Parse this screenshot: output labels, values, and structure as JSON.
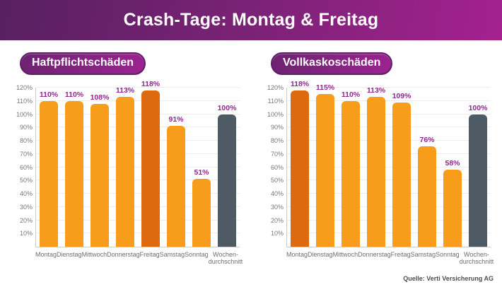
{
  "header": {
    "title": "Crash-Tage: Montag & Freitag"
  },
  "source": {
    "label": "Quelle: Verti Versicherung AG"
  },
  "colors": {
    "header_gradient_start": "#582060",
    "header_gradient_end": "#A4218F",
    "badge_gradient_start": "#6E2371",
    "badge_gradient_end": "#9C2390",
    "badge_border": "#5E1F66",
    "bar_normal": "#F89C1C",
    "bar_highlight": "#DE6A10",
    "bar_average": "#4E5A64",
    "value_label": "#92278F",
    "axis_label": "#77787B"
  },
  "chart_data": [
    {
      "type": "bar",
      "title": "Haftpflichtschäden",
      "categories": [
        "Montag",
        "Dienstag",
        "Mittwoch",
        "Donnerstag",
        "Freitag",
        "Samstag",
        "Sonntag",
        "Wochen-\ndurchschnitt"
      ],
      "values": [
        110,
        110,
        108,
        113,
        118,
        91,
        51,
        100
      ],
      "value_labels": [
        "110%",
        "110%",
        "108%",
        "113%",
        "118%",
        "91%",
        "51%",
        "100%"
      ],
      "highlight_index": 4,
      "average_index": 7,
      "xlabel": "",
      "ylabel": "",
      "ylim": [
        0,
        120
      ],
      "ytick_step": 10,
      "ytick_suffix": "%",
      "grid": true,
      "legend": "none"
    },
    {
      "type": "bar",
      "title": "Vollkaskoschäden",
      "categories": [
        "Montag",
        "Dienstag",
        "Mittwoch",
        "Donnerstag",
        "Freitag",
        "Samstag",
        "Sonntag",
        "Wochen-\ndurchschnitt"
      ],
      "values": [
        118,
        115,
        110,
        113,
        109,
        76,
        58,
        100
      ],
      "value_labels": [
        "118%",
        "115%",
        "110%",
        "113%",
        "109%",
        "76%",
        "58%",
        "100%"
      ],
      "highlight_index": 0,
      "average_index": 7,
      "xlabel": "",
      "ylabel": "",
      "ylim": [
        0,
        120
      ],
      "ytick_step": 10,
      "ytick_suffix": "%",
      "grid": true,
      "legend": "none"
    }
  ]
}
